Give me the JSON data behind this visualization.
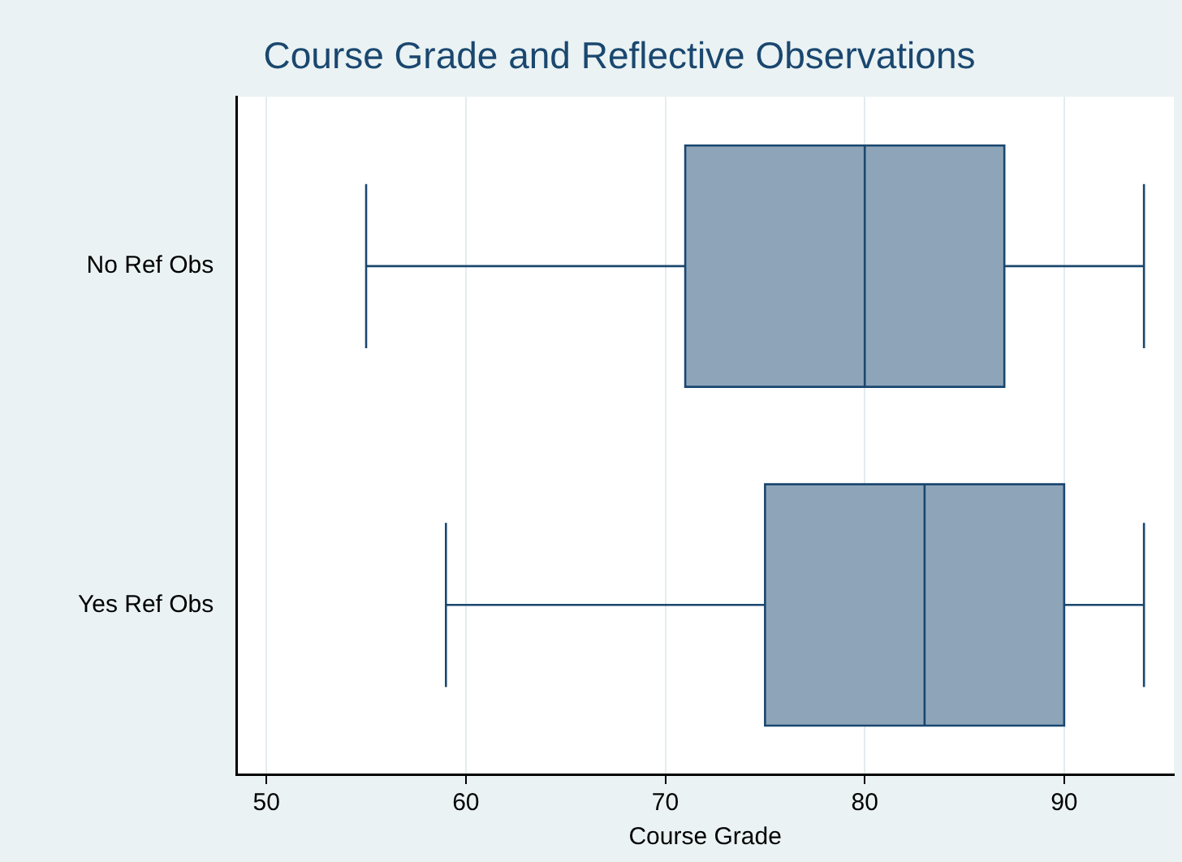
{
  "chart_data": {
    "type": "box",
    "title": "Course Grade and Reflective Observations",
    "xlabel": "Course Grade",
    "orientation": "horizontal",
    "categories": [
      "No Ref Obs",
      "Yes Ref Obs"
    ],
    "boxes": [
      {
        "low": 55,
        "q1": 71,
        "median": 80,
        "q3": 87,
        "high": 94
      },
      {
        "low": 59,
        "q1": 75,
        "median": 83,
        "q3": 90,
        "high": 94
      }
    ],
    "color": "#8ea4b9",
    "xlim": [
      48.5,
      95.5
    ],
    "xticks": [
      50,
      60,
      70,
      80,
      90
    ],
    "grid": "x",
    "legend": false
  }
}
